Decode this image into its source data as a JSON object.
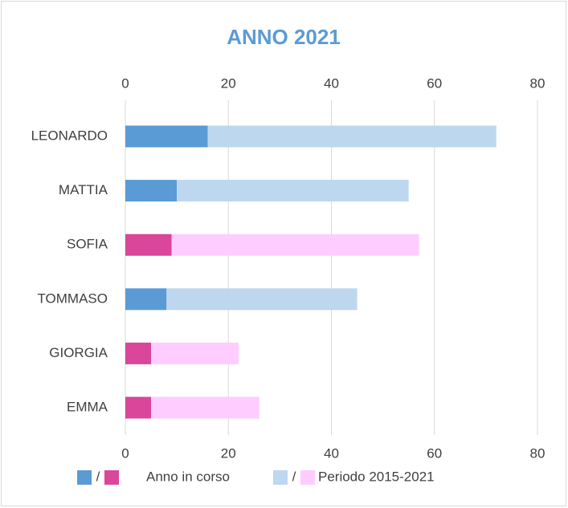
{
  "chart_data": {
    "type": "bar",
    "orientation": "horizontal",
    "stacked": true,
    "title": "ANNO 2021",
    "categories": [
      "LEONARDO",
      "MATTIA",
      "SOFIA",
      "TOMMASO",
      "GIORGIA",
      "EMMA"
    ],
    "series": [
      {
        "name": "Anno in corso",
        "colors": [
          "#5b9bd5",
          "#5b9bd5",
          "#d9469a",
          "#5b9bd5",
          "#d9469a",
          "#d9469a"
        ],
        "values": [
          16,
          10,
          9,
          8,
          5,
          5
        ]
      },
      {
        "name": "Periodo 2015-2021",
        "colors": [
          "#bdd7ee",
          "#bdd7ee",
          "#ffccff",
          "#bdd7ee",
          "#ffccff",
          "#ffccff"
        ],
        "values": [
          56,
          45,
          48,
          37,
          17,
          21
        ]
      }
    ],
    "legend_separator": "/",
    "xlim": [
      0,
      80
    ],
    "xticks": [
      0,
      20,
      40,
      60,
      80
    ],
    "grid": true,
    "legend": "bottom"
  }
}
